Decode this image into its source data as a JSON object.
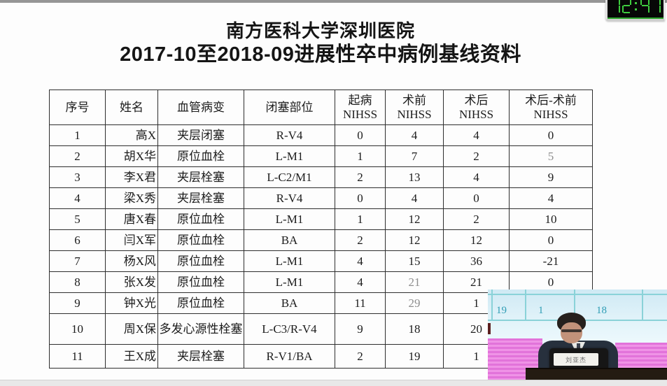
{
  "clock": {
    "time": "12:41",
    "led_color": "#3ecb3e",
    "bg_color": "#070707"
  },
  "slide": {
    "title_line1": "南方医科大学深圳医院",
    "title_line2": "2017-10至2018-09进展性卒中病例基线资料",
    "table": {
      "headers": [
        "序号",
        "姓名",
        "血管病变",
        "闭塞部位",
        "起病\nNIHSS",
        "术前\nNIHSS",
        "术后\nNIHSS",
        "术后-术前\nNIHSS"
      ],
      "rows": [
        [
          "1",
          "高X",
          "夹层闭塞",
          "R-V4",
          "0",
          "4",
          "4",
          "0"
        ],
        [
          "2",
          "胡X华",
          "原位血栓",
          "L-M1",
          "1",
          "7",
          "2",
          "5"
        ],
        [
          "3",
          "李X君",
          "夹层栓塞",
          "L-C2/M1",
          "2",
          "13",
          "4",
          "9"
        ],
        [
          "4",
          "梁X秀",
          "夹层栓塞",
          "R-V4",
          "0",
          "4",
          "0",
          "4"
        ],
        [
          "5",
          "唐X春",
          "原位血栓",
          "L-M1",
          "1",
          "12",
          "2",
          "10"
        ],
        [
          "6",
          "闫X军",
          "原位血栓",
          "BA",
          "2",
          "12",
          "12",
          "0"
        ],
        [
          "7",
          "杨X风",
          "原位血栓",
          "L-M1",
          "4",
          "15",
          "36",
          "-21"
        ],
        [
          "8",
          "张X发",
          "原位血栓",
          "L-M1",
          "4",
          "21",
          "21",
          "0"
        ],
        [
          "9",
          "钟X光",
          "原位血栓",
          "BA",
          "11",
          "29",
          "1",
          ""
        ],
        [
          "10",
          "周X保",
          "多发心源性栓塞",
          "L-C3/R-V4",
          "9",
          "18",
          "20",
          ""
        ],
        [
          "11",
          "王X成",
          "夹层栓塞",
          "R-V1/BA",
          "2",
          "19",
          "1",
          ""
        ]
      ]
    }
  },
  "video_overlay": {
    "screen_table_values": [
      "19",
      "1",
      "18"
    ],
    "speaker_name_card": "刘亚杰",
    "colors": {
      "screen_teal": "#2f9db5",
      "wall_pink": "#e273da"
    }
  }
}
